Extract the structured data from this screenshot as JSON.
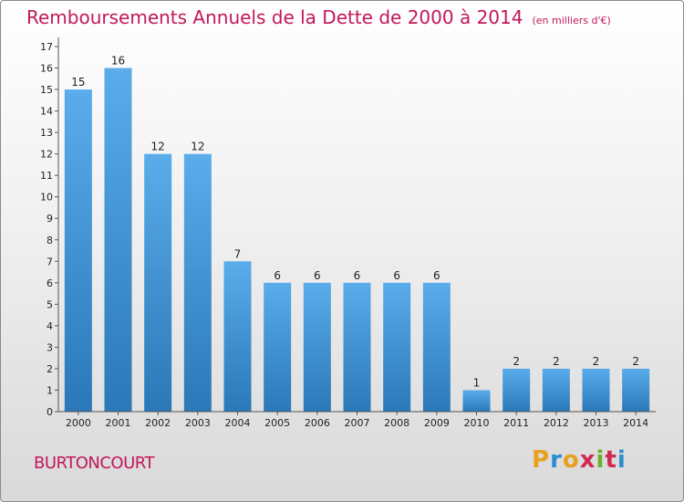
{
  "header": {
    "title": "Remboursements Annuels de la Dette de 2000 à 2014",
    "unit": "(en milliers d'€)"
  },
  "footer": {
    "commune": "BURTONCOURT",
    "logo": [
      "P",
      "r",
      "o",
      "x",
      "i",
      "t",
      "i"
    ]
  },
  "colors": {
    "title": "#c2185b",
    "bar_top": "#5aaceb",
    "bar_bottom": "#2a78b8",
    "logo": [
      "#e8a020",
      "#2a8fd0",
      "#e8a020",
      "#d02a50",
      "#6ab02a",
      "#d02a50",
      "#2a8fd0"
    ]
  },
  "chart_data": {
    "type": "bar",
    "categories": [
      "2000",
      "2001",
      "2002",
      "2003",
      "2004",
      "2005",
      "2006",
      "2007",
      "2008",
      "2009",
      "2010",
      "2011",
      "2012",
      "2013",
      "2014"
    ],
    "values": [
      15,
      16,
      12,
      12,
      7,
      6,
      6,
      6,
      6,
      6,
      1,
      2,
      2,
      2,
      2
    ],
    "ylim": [
      0,
      17
    ],
    "yticks": [
      "0",
      "1",
      "2",
      "3",
      "4",
      "5",
      "6",
      "7",
      "8",
      "9",
      "10",
      "11",
      "12",
      "13",
      "14",
      "15",
      "16",
      "17"
    ],
    "grid": false
  }
}
